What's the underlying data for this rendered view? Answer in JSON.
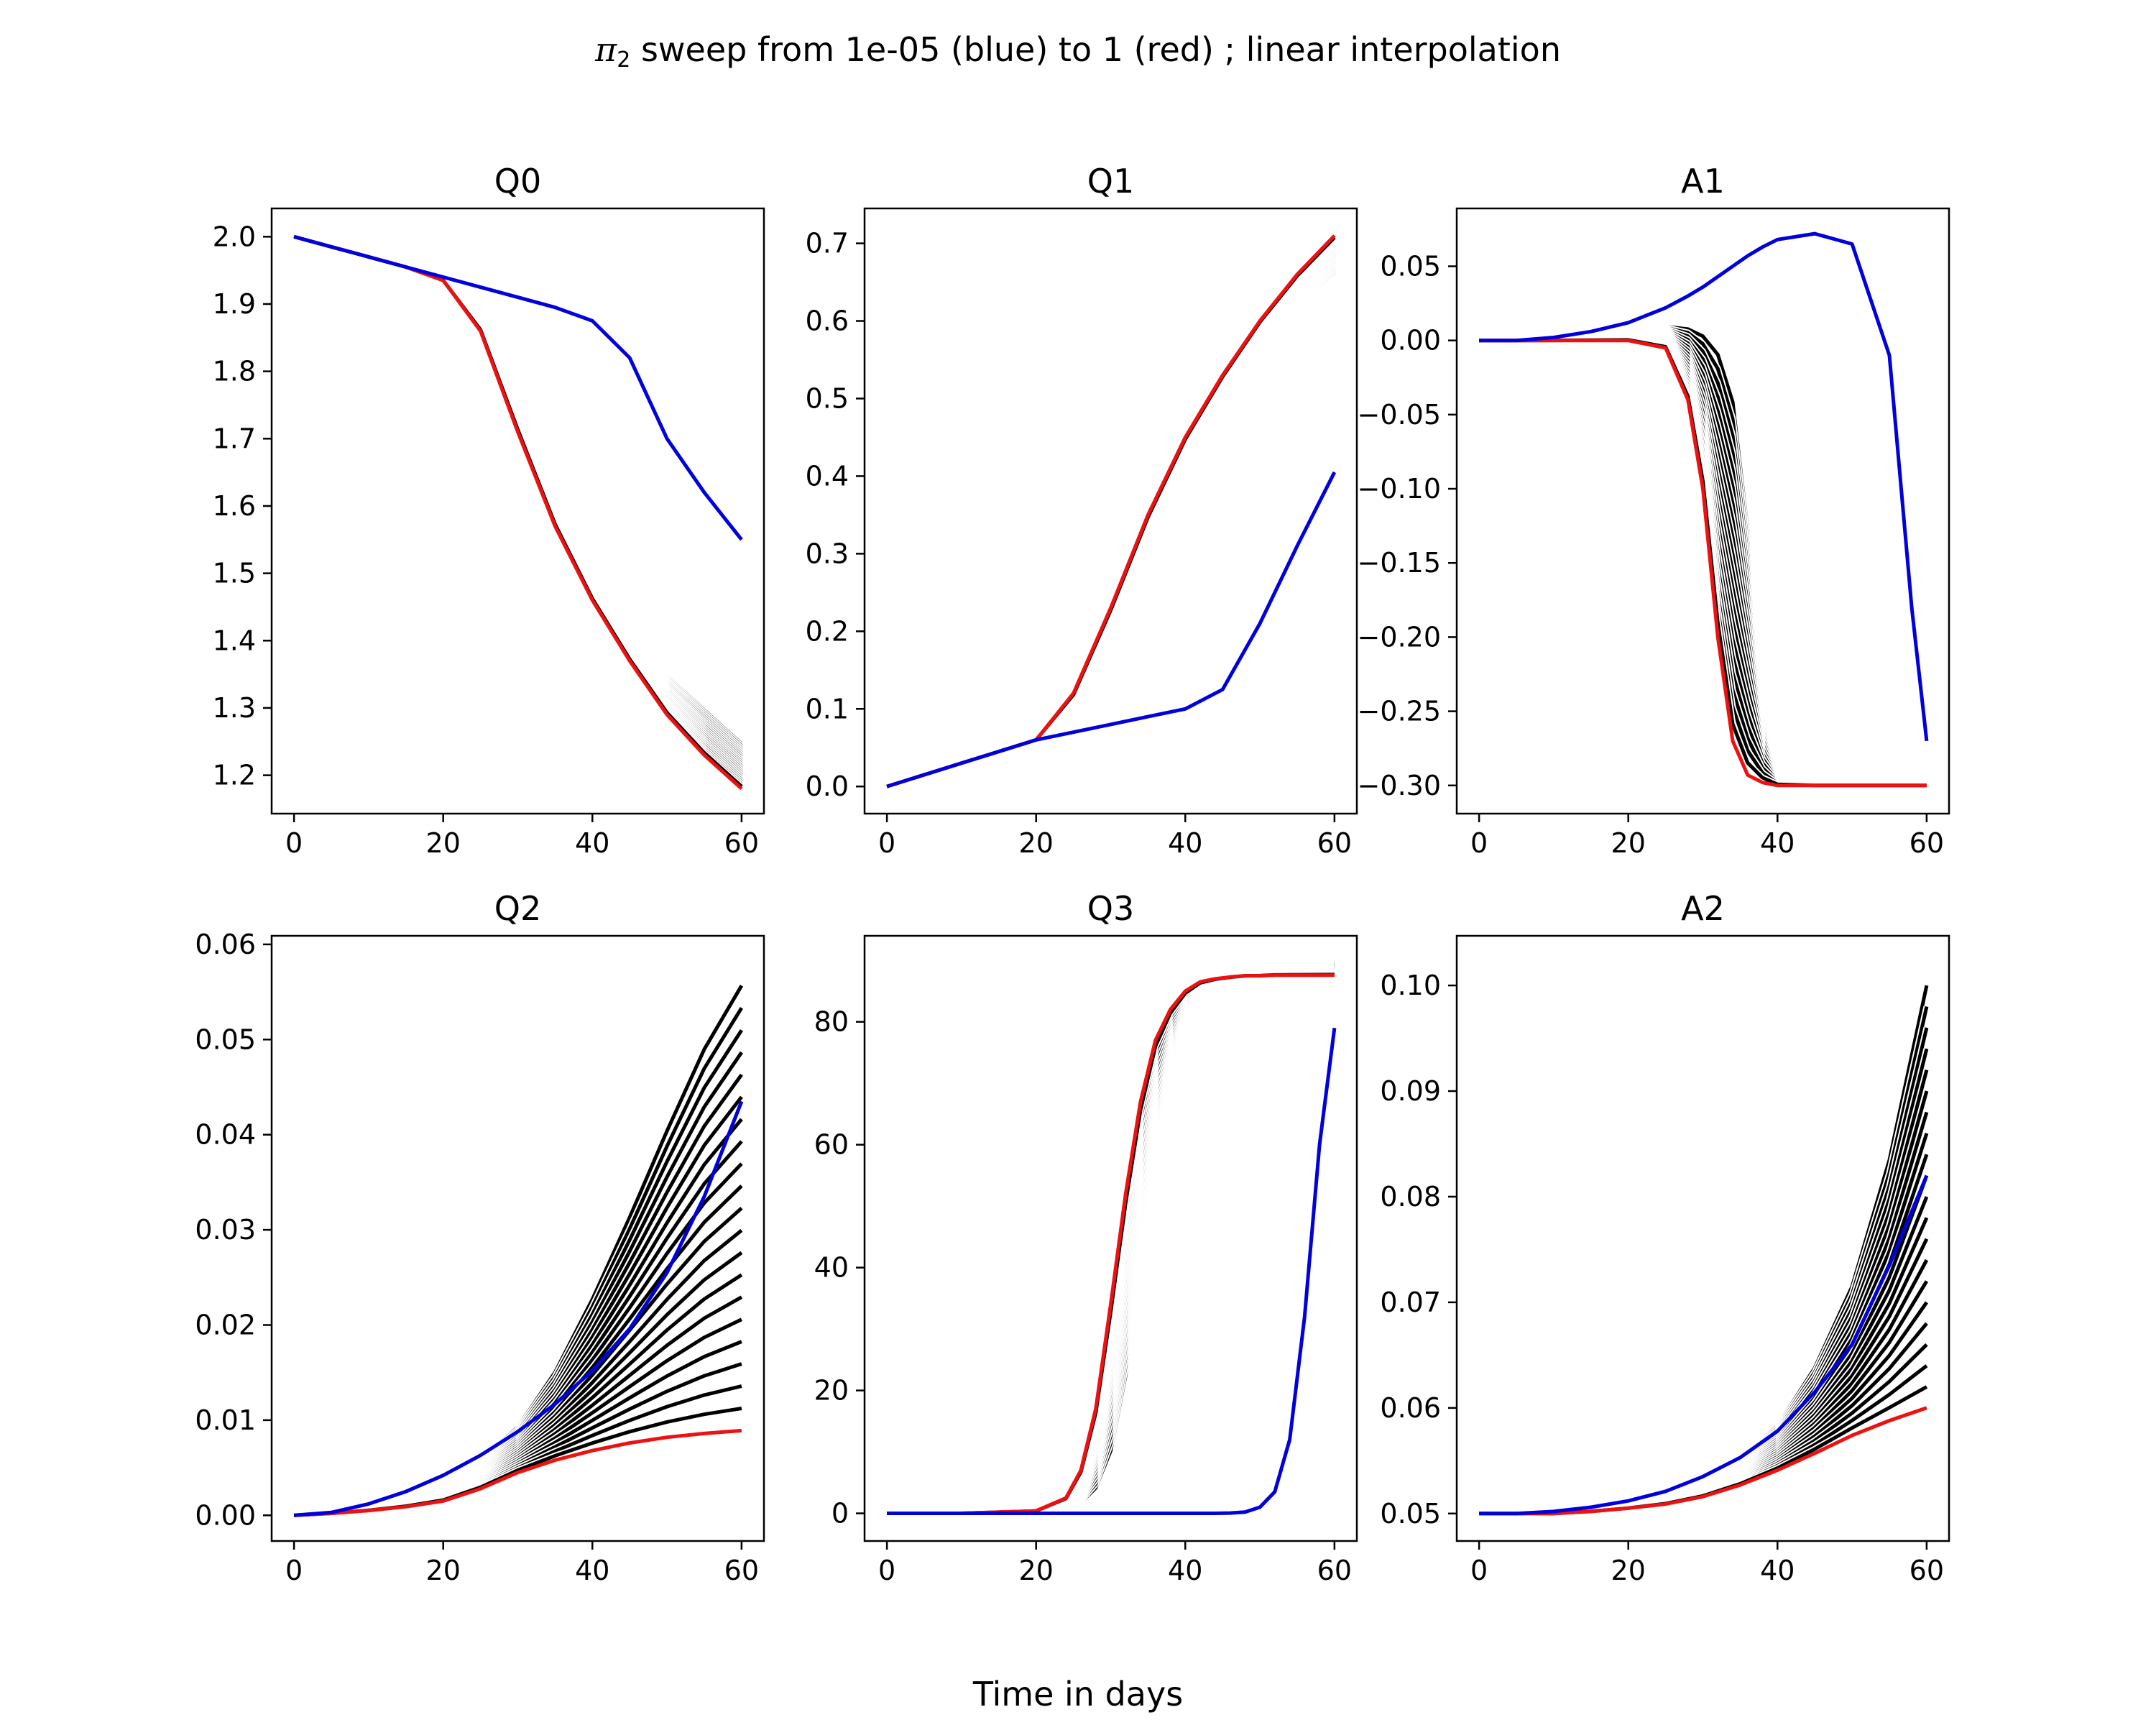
{
  "figure": {
    "title_symbol": "π",
    "title_subscript": "2",
    "title_rest": " sweep from 1e-05 (blue) to 1 (red) ; linear interpolation",
    "xlabel": "Time in days",
    "colors": {
      "first": "#0000dd",
      "last": "#ee1111",
      "middle": "#000000",
      "outline": "#ffffff"
    }
  },
  "chart_data": [
    {
      "type": "line",
      "title": "Q0",
      "xlim": [
        -3,
        63
      ],
      "ylim": [
        1.143,
        2.042
      ],
      "xticks": [
        0,
        20,
        40,
        60
      ],
      "yticks": [
        1.2,
        1.3,
        1.4,
        1.5,
        1.6,
        1.7,
        1.8,
        1.9,
        2.0
      ],
      "ytick_labels": [
        "1.2",
        "1.3",
        "1.4",
        "1.5",
        "1.6",
        "1.7",
        "1.8",
        "1.9",
        "2.0"
      ],
      "x": [
        0,
        5,
        10,
        15,
        20,
        25,
        30,
        35,
        40,
        45,
        50,
        55,
        60
      ],
      "blue": [
        2.0,
        1.985,
        1.97,
        1.955,
        1.94,
        1.925,
        1.91,
        1.895,
        1.875,
        1.82,
        1.7,
        1.62,
        1.55
      ],
      "red": [
        2.0,
        1.985,
        1.97,
        1.955,
        1.935,
        1.86,
        1.71,
        1.57,
        1.46,
        1.37,
        1.29,
        1.23,
        1.18
      ],
      "black_outer": [
        2.0,
        1.985,
        1.97,
        1.955,
        1.94,
        1.9,
        1.78,
        1.63,
        1.51,
        1.42,
        1.35,
        1.3,
        1.25
      ],
      "middle_count": 20
    },
    {
      "type": "line",
      "title": "Q1",
      "xlim": [
        -3,
        63
      ],
      "ylim": [
        -0.035,
        0.745
      ],
      "xticks": [
        0,
        20,
        40,
        60
      ],
      "yticks": [
        0.0,
        0.1,
        0.2,
        0.3,
        0.4,
        0.5,
        0.6,
        0.7
      ],
      "ytick_labels": [
        "0.0",
        "0.1",
        "0.2",
        "0.3",
        "0.4",
        "0.5",
        "0.6",
        "0.7"
      ],
      "x": [
        0,
        5,
        10,
        15,
        20,
        25,
        30,
        35,
        40,
        45,
        50,
        55,
        60
      ],
      "blue": [
        0.0,
        0.015,
        0.03,
        0.045,
        0.06,
        0.07,
        0.08,
        0.09,
        0.1,
        0.125,
        0.21,
        0.31,
        0.405
      ],
      "red": [
        0.0,
        0.015,
        0.03,
        0.045,
        0.06,
        0.12,
        0.23,
        0.35,
        0.45,
        0.53,
        0.6,
        0.66,
        0.71
      ],
      "black_outer": [
        0.0,
        0.015,
        0.03,
        0.045,
        0.06,
        0.08,
        0.17,
        0.29,
        0.4,
        0.49,
        0.57,
        0.62,
        0.66
      ],
      "middle_count": 20
    },
    {
      "type": "line",
      "title": "A1",
      "xlim": [
        -3,
        63
      ],
      "ylim": [
        -0.319,
        0.089
      ],
      "xticks": [
        0,
        20,
        40,
        60
      ],
      "yticks": [
        0.05,
        0.0,
        -0.05,
        -0.1,
        -0.15,
        -0.2,
        -0.25,
        -0.3
      ],
      "ytick_labels": [
        "0.05",
        "0.00",
        "−0.05",
        "−0.10",
        "−0.15",
        "−0.20",
        "−0.25",
        "−0.30"
      ],
      "x": [
        0,
        5,
        10,
        15,
        20,
        25,
        28,
        30,
        32,
        34,
        36,
        38,
        40,
        45,
        50,
        55,
        58,
        60
      ],
      "blue": [
        0.0,
        0.0,
        0.002,
        0.006,
        0.012,
        0.022,
        0.03,
        0.036,
        0.043,
        0.05,
        0.057,
        0.063,
        0.068,
        0.072,
        0.065,
        -0.01,
        -0.18,
        -0.27
      ],
      "red": [
        0.0,
        0.0,
        0.0,
        0.0,
        0.0,
        -0.005,
        -0.04,
        -0.1,
        -0.2,
        -0.27,
        -0.293,
        -0.298,
        -0.3,
        -0.3,
        -0.3,
        -0.3,
        -0.3,
        -0.3
      ],
      "black_outer": [
        0.0,
        0.0,
        0.001,
        0.004,
        0.008,
        0.01,
        0.01,
        0.008,
        0.0,
        -0.03,
        -0.12,
        -0.23,
        -0.285,
        -0.3,
        -0.3,
        -0.3,
        -0.3,
        -0.3
      ],
      "middle_count": 20
    },
    {
      "type": "line",
      "title": "Q2",
      "xlim": [
        -3,
        63
      ],
      "ylim": [
        -0.0027,
        0.0609
      ],
      "xticks": [
        0,
        20,
        40,
        60
      ],
      "yticks": [
        0.0,
        0.01,
        0.02,
        0.03,
        0.04,
        0.05,
        0.06
      ],
      "ytick_labels": [
        "0.00",
        "0.01",
        "0.02",
        "0.03",
        "0.04",
        "0.05",
        "0.06"
      ],
      "x": [
        0,
        5,
        10,
        15,
        20,
        25,
        30,
        35,
        40,
        45,
        50,
        55,
        60
      ],
      "blue": [
        0.0,
        0.0003,
        0.0012,
        0.0025,
        0.0042,
        0.0063,
        0.0088,
        0.0117,
        0.0152,
        0.0196,
        0.0255,
        0.0335,
        0.0435
      ],
      "red": [
        0.0,
        0.0002,
        0.0005,
        0.0009,
        0.0015,
        0.0028,
        0.0045,
        0.0058,
        0.0068,
        0.0076,
        0.0082,
        0.0086,
        0.0089
      ],
      "black_outer": [
        0.0,
        0.0003,
        0.001,
        0.002,
        0.0035,
        0.0058,
        0.0095,
        0.0155,
        0.0235,
        0.0325,
        0.042,
        0.051,
        0.058
      ],
      "middle_count": 20
    },
    {
      "type": "line",
      "title": "Q3",
      "xlim": [
        -3,
        63
      ],
      "ylim": [
        -4.5,
        94
      ],
      "xticks": [
        0,
        20,
        40,
        60
      ],
      "yticks": [
        0,
        20,
        40,
        60,
        80
      ],
      "ytick_labels": [
        "0",
        "20",
        "40",
        "60",
        "80"
      ],
      "x": [
        0,
        10,
        20,
        24,
        26,
        28,
        30,
        32,
        34,
        36,
        38,
        40,
        42,
        44,
        46,
        48,
        50,
        52,
        54,
        56,
        58,
        60
      ],
      "blue": [
        0,
        0,
        0,
        0,
        0,
        0,
        0,
        0,
        0,
        0,
        0,
        0,
        0,
        0,
        0.05,
        0.2,
        1,
        3.5,
        12,
        32,
        60,
        79
      ],
      "red": [
        0,
        0,
        0.4,
        2.5,
        7,
        17,
        34,
        52,
        67,
        77,
        82,
        85,
        86.5,
        87,
        87.3,
        87.5,
        87.5,
        87.6,
        87.6,
        87.6,
        87.6,
        87.6
      ],
      "black_outer": [
        0,
        0,
        0.1,
        0.6,
        1.5,
        3.5,
        9,
        21,
        39,
        57,
        70,
        78,
        83,
        85.5,
        86.5,
        87.3,
        87.8,
        88.3,
        88.7,
        89.1,
        89.4,
        89.7
      ],
      "middle_count": 20
    },
    {
      "type": "line",
      "title": "A2",
      "xlim": [
        -3,
        63
      ],
      "ylim": [
        0.0474,
        0.1047
      ],
      "xticks": [
        0,
        20,
        40,
        60
      ],
      "yticks": [
        0.05,
        0.06,
        0.07,
        0.08,
        0.09,
        0.1
      ],
      "ytick_labels": [
        "0.05",
        "0.06",
        "0.07",
        "0.08",
        "0.09",
        "0.10"
      ],
      "x": [
        0,
        5,
        10,
        15,
        20,
        25,
        30,
        35,
        40,
        45,
        50,
        55,
        60
      ],
      "blue": [
        0.05,
        0.05,
        0.0502,
        0.0506,
        0.0512,
        0.0521,
        0.0535,
        0.0553,
        0.0578,
        0.0615,
        0.066,
        0.0735,
        0.082
      ],
      "red": [
        0.05,
        0.05,
        0.05,
        0.0502,
        0.0505,
        0.0509,
        0.0516,
        0.0527,
        0.0541,
        0.0557,
        0.0574,
        0.0588,
        0.06
      ],
      "black_outer": [
        0.05,
        0.05,
        0.0501,
        0.0504,
        0.0509,
        0.0517,
        0.053,
        0.0552,
        0.0585,
        0.0642,
        0.0722,
        0.0847,
        0.102
      ],
      "middle_count": 20
    }
  ]
}
